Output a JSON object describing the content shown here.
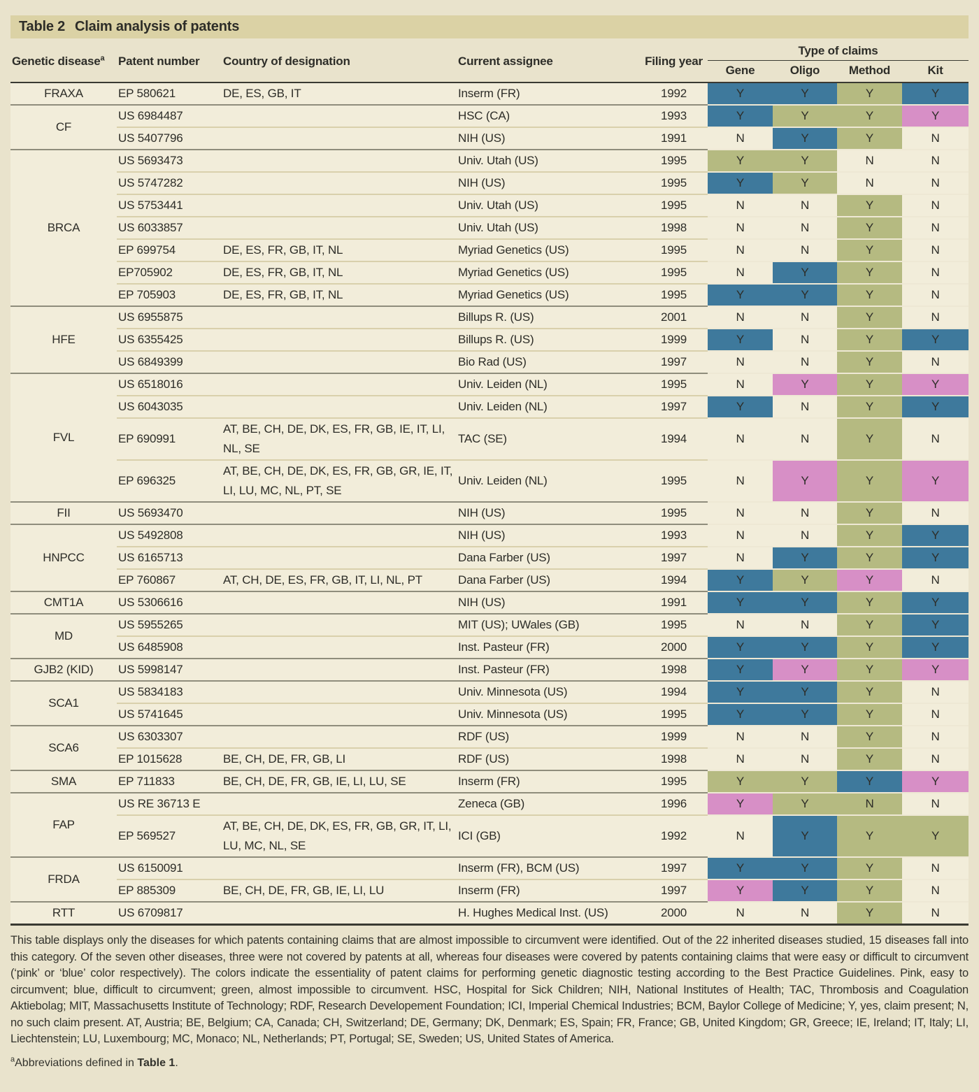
{
  "title": {
    "prefix": "Table 2",
    "text": "Claim analysis of patents"
  },
  "colors": {
    "blue": "#3e799c",
    "green": "#b5ba81",
    "pink": "#d78fc6"
  },
  "columns": {
    "disease": "Genetic disease",
    "disease_sup": "a",
    "patent": "Patent number",
    "country": "Country of designation",
    "assignee": "Current assignee",
    "year": "Filing year",
    "claims_group": "Type of claims",
    "claims": [
      "Gene",
      "Oligo",
      "Method",
      "Kit"
    ]
  },
  "groups": [
    {
      "disease": "FRAXA",
      "rows": [
        {
          "patent": "EP 580621",
          "country": "DE, ES, GB, IT",
          "assignee": "Inserm (FR)",
          "year": "1992",
          "claims": [
            "Y:blue",
            "Y:blue",
            "Y:green",
            "Y:blue"
          ]
        }
      ]
    },
    {
      "disease": "CF",
      "rows": [
        {
          "patent": "US 6984487",
          "country": "",
          "assignee": "HSC (CA)",
          "year": "1993",
          "claims": [
            "Y:blue",
            "Y:green",
            "Y:green",
            "Y:pink"
          ]
        },
        {
          "patent": "US 5407796",
          "country": "",
          "assignee": "NIH (US)",
          "year": "1991",
          "claims": [
            "N",
            "Y:blue",
            "Y:green",
            "N"
          ]
        }
      ]
    },
    {
      "disease": "BRCA",
      "rows": [
        {
          "patent": "US 5693473",
          "country": "",
          "assignee": "Univ. Utah (US)",
          "year": "1995",
          "claims": [
            "Y:green",
            "Y:green",
            "N",
            "N"
          ]
        },
        {
          "patent": "US 5747282",
          "country": "",
          "assignee": "NIH (US)",
          "year": "1995",
          "claims": [
            "Y:blue",
            "Y:green",
            "N",
            "N"
          ]
        },
        {
          "patent": "US 5753441",
          "country": "",
          "assignee": "Univ. Utah (US)",
          "year": "1995",
          "claims": [
            "N",
            "N",
            "Y:green",
            "N"
          ]
        },
        {
          "patent": "US 6033857",
          "country": "",
          "assignee": "Univ. Utah (US)",
          "year": "1998",
          "claims": [
            "N",
            "N",
            "Y:green",
            "N"
          ]
        },
        {
          "patent": "EP 699754",
          "country": "DE, ES, FR, GB, IT, NL",
          "assignee": "Myriad Genetics (US)",
          "year": "1995",
          "claims": [
            "N",
            "N",
            "Y:green",
            "N"
          ]
        },
        {
          "patent": "EP705902",
          "country": "DE, ES, FR, GB, IT, NL",
          "assignee": "Myriad Genetics (US)",
          "year": "1995",
          "claims": [
            "N",
            "Y:blue",
            "Y:green",
            "N"
          ]
        },
        {
          "patent": "EP 705903",
          "country": "DE, ES, FR, GB, IT, NL",
          "assignee": "Myriad Genetics (US)",
          "year": "1995",
          "claims": [
            "Y:blue",
            "Y:blue",
            "Y:green",
            "N"
          ]
        }
      ]
    },
    {
      "disease": "HFE",
      "rows": [
        {
          "patent": "US 6955875",
          "country": "",
          "assignee": "Billups R. (US)",
          "year": "2001",
          "claims": [
            "N",
            "N",
            "Y:green",
            "N"
          ]
        },
        {
          "patent": "US 6355425",
          "country": "",
          "assignee": "Billups R. (US)",
          "year": "1999",
          "claims": [
            "Y:blue",
            "N",
            "Y:green",
            "Y:blue"
          ]
        },
        {
          "patent": "US 6849399",
          "country": "",
          "assignee": "Bio Rad (US)",
          "year": "1997",
          "claims": [
            "N",
            "N",
            "Y:green",
            "N"
          ]
        }
      ]
    },
    {
      "disease": "FVL",
      "rows": [
        {
          "patent": "US 6518016",
          "country": "",
          "assignee": "Univ. Leiden (NL)",
          "year": "1995",
          "claims": [
            "N",
            "Y:pink",
            "Y:green",
            "Y:pink"
          ]
        },
        {
          "patent": "US 6043035",
          "country": "",
          "assignee": "Univ. Leiden (NL)",
          "year": "1997",
          "claims": [
            "Y:blue",
            "N",
            "Y:green",
            "Y:blue"
          ]
        },
        {
          "patent": "EP 690991",
          "country": "AT, BE, CH, DE, DK, ES, FR, GB, IE, IT, LI, NL, SE",
          "assignee": "TAC (SE)",
          "year": "1994",
          "claims": [
            "N",
            "N",
            "Y:green",
            "N"
          ]
        },
        {
          "patent": "EP 696325",
          "country": "AT, BE, CH, DE, DK, ES, FR, GB, GR, IE, IT, LI, LU, MC, NL, PT, SE",
          "assignee": "Univ. Leiden (NL)",
          "year": "1995",
          "claims": [
            "N",
            "Y:pink",
            "Y:green",
            "Y:pink"
          ]
        }
      ]
    },
    {
      "disease": "FII",
      "rows": [
        {
          "patent": "US 5693470",
          "country": "",
          "assignee": "NIH (US)",
          "year": "1995",
          "claims": [
            "N",
            "N",
            "Y:green",
            "N"
          ]
        }
      ]
    },
    {
      "disease": "HNPCC",
      "rows": [
        {
          "patent": "US 5492808",
          "country": "",
          "assignee": "NIH (US)",
          "year": "1993",
          "claims": [
            "N",
            "N",
            "Y:green",
            "Y:blue"
          ]
        },
        {
          "patent": "US 6165713",
          "country": "",
          "assignee": "Dana Farber (US)",
          "year": "1997",
          "claims": [
            "N",
            "Y:blue",
            "Y:green",
            "Y:blue"
          ]
        },
        {
          "patent": "EP 760867",
          "country": "AT, CH, DE, ES, FR, GB, IT, LI, NL, PT",
          "assignee": "Dana Farber (US)",
          "year": "1994",
          "claims": [
            "Y:blue",
            "Y:green",
            "Y:pink",
            "N"
          ]
        }
      ]
    },
    {
      "disease": "CMT1A",
      "rows": [
        {
          "patent": "US 5306616",
          "country": "",
          "assignee": "NIH (US)",
          "year": "1991",
          "claims": [
            "Y:blue",
            "Y:blue",
            "Y:green",
            "Y:blue"
          ]
        }
      ]
    },
    {
      "disease": "MD",
      "rows": [
        {
          "patent": "US 5955265",
          "country": "",
          "assignee": "MIT (US); UWales (GB)",
          "year": "1995",
          "claims": [
            "N",
            "N",
            "Y:green",
            "Y:blue"
          ]
        },
        {
          "patent": "US 6485908",
          "country": "",
          "assignee": "Inst. Pasteur (FR)",
          "year": "2000",
          "claims": [
            "Y:blue",
            "Y:blue",
            "Y:green",
            "Y:blue"
          ]
        }
      ]
    },
    {
      "disease": "GJB2 (KID)",
      "rows": [
        {
          "patent": "US 5998147",
          "country": "",
          "assignee": "Inst. Pasteur (FR)",
          "year": "1998",
          "claims": [
            "Y:blue",
            "Y:pink",
            "Y:green",
            "Y:pink"
          ]
        }
      ]
    },
    {
      "disease": "SCA1",
      "rows": [
        {
          "patent": "US 5834183",
          "country": "",
          "assignee": "Univ. Minnesota (US)",
          "year": "1994",
          "claims": [
            "Y:blue",
            "Y:blue",
            "Y:green",
            "N"
          ]
        },
        {
          "patent": "US 5741645",
          "country": "",
          "assignee": "Univ. Minnesota (US)",
          "year": "1995",
          "claims": [
            "Y:blue",
            "Y:blue",
            "Y:green",
            "N"
          ]
        }
      ]
    },
    {
      "disease": "SCA6",
      "rows": [
        {
          "patent": "US 6303307",
          "country": "",
          "assignee": "RDF (US)",
          "year": "1999",
          "claims": [
            "N",
            "N",
            "Y:green",
            "N"
          ]
        },
        {
          "patent": "EP 1015628",
          "country": "BE, CH, DE, FR, GB, LI",
          "assignee": "RDF (US)",
          "year": "1998",
          "claims": [
            "N",
            "N",
            "Y:green",
            "N"
          ]
        }
      ]
    },
    {
      "disease": "SMA",
      "rows": [
        {
          "patent": "EP 711833",
          "country": "BE, CH, DE, FR, GB, IE, LI, LU, SE",
          "assignee": "Inserm (FR)",
          "year": "1995",
          "claims": [
            "Y:green",
            "Y:green",
            "Y:blue",
            "Y:pink"
          ]
        }
      ]
    },
    {
      "disease": "FAP",
      "rows": [
        {
          "patent": "US RE 36713 E",
          "country": "",
          "assignee": "Zeneca (GB)",
          "year": "1996",
          "claims": [
            "Y:pink",
            "Y:green",
            "N:green",
            "N"
          ]
        },
        {
          "patent": "EP 569527",
          "country": "AT, BE, CH, DE, DK, ES, FR, GB, GR, IT, LI, LU, MC, NL, SE",
          "assignee": "ICI (GB)",
          "year": "1992",
          "claims": [
            "N",
            "Y:blue",
            "Y:green",
            "Y:green"
          ]
        }
      ]
    },
    {
      "disease": "FRDA",
      "rows": [
        {
          "patent": "US 6150091",
          "country": "",
          "assignee": "Inserm (FR), BCM (US)",
          "year": "1997",
          "claims": [
            "Y:blue",
            "Y:blue",
            "Y:green",
            "N"
          ]
        },
        {
          "patent": "EP 885309",
          "country": "BE, CH, DE, FR, GB, IE, LI, LU",
          "assignee": "Inserm (FR)",
          "year": "1997",
          "claims": [
            "Y:pink",
            "Y:blue",
            "Y:green",
            "N"
          ]
        }
      ]
    },
    {
      "disease": "RTT",
      "rows": [
        {
          "patent": "US 6709817",
          "country": "",
          "assignee": "H. Hughes Medical Inst. (US)",
          "year": "2000",
          "claims": [
            "N",
            "N",
            "Y:green",
            "N"
          ]
        }
      ]
    }
  ],
  "footnote": "This table displays only the diseases for which patents containing claims that are almost impossible to circumvent were identified. Out of the 22 inherited diseases studied, 15 diseases fall into this category. Of the seven other diseases, three were not covered by patents at all, whereas four diseases were covered by patents containing claims that were easy or difficult to circumvent (‘pink’ or ‘blue’ color respectively). The colors indicate the essentiality of patent claims for performing genetic diagnostic testing according to the Best Practice Guidelines. Pink, easy to circumvent; blue, difficult to circumvent; green, almost impossible to circumvent. HSC, Hospital for Sick Children; NIH, National Institutes of Health; TAC, Thrombosis and Coagulation Aktiebolag; MIT, Massachusetts Institute of Technology; RDF, Research Developement Foundation; ICI, Imperial Chemical Industries; BCM, Baylor College of Medicine; Y, yes, claim present; N, no such claim present. AT, Austria; BE, Belgium; CA, Canada; CH, Switzerland; DE, Germany; DK, Denmark; ES, Spain; FR, France; GB, United Kingdom; GR, Greece; IE, Ireland; IT, Italy; LI, Liechtenstein; LU, Luxembourg; MC, Monaco; NL, Netherlands; PT, Portugal; SE, Sweden; US, United States of America.",
  "footnote_a": {
    "sup": "a",
    "text": "Abbreviations defined in ",
    "bold": "Table 1",
    "suffix": "."
  }
}
